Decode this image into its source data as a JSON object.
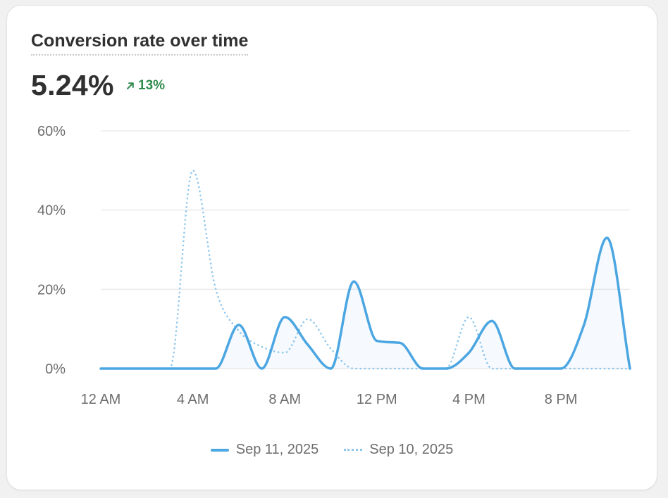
{
  "card": {
    "title": "Conversion rate over time",
    "metric_value": "5.24%",
    "delta": "13%",
    "delta_direction": "up",
    "delta_color": "#2f8a4d"
  },
  "chart_data": {
    "type": "line",
    "title": "Conversion rate over time",
    "xlabel": "",
    "ylabel": "",
    "y_ticks": [
      "0%",
      "20%",
      "40%",
      "60%"
    ],
    "y_tick_values": [
      0,
      20,
      40,
      60
    ],
    "ylim": [
      0,
      60
    ],
    "x_ticks": [
      "12 AM",
      "4 AM",
      "8 AM",
      "12 PM",
      "4 PM",
      "8 PM"
    ],
    "x_tick_values": [
      0,
      4,
      8,
      12,
      16,
      20
    ],
    "xlim": [
      0,
      23
    ],
    "grid": true,
    "legend_position": "bottom-center",
    "x": [
      0,
      1,
      2,
      3,
      4,
      5,
      6,
      7,
      8,
      9,
      10,
      11,
      12,
      13,
      14,
      15,
      16,
      17,
      18,
      19,
      20,
      21,
      22,
      23
    ],
    "series": [
      {
        "name": "Sep 11, 2025",
        "style": "solid",
        "color": "#4ba6e2",
        "values": [
          0,
          0,
          0,
          0,
          0,
          0,
          11,
          0,
          13,
          6,
          0,
          22,
          7,
          6.5,
          0,
          0,
          4,
          12,
          0,
          0,
          0,
          11,
          33,
          0
        ]
      },
      {
        "name": "Sep 10, 2025",
        "style": "dotted",
        "color": "#8ec7ec",
        "values": [
          0,
          0,
          0,
          0,
          50,
          20,
          9.5,
          5.5,
          4,
          12.5,
          5,
          0,
          0,
          0,
          0,
          0,
          13,
          0,
          0,
          0,
          0,
          0,
          0,
          0
        ]
      }
    ]
  }
}
